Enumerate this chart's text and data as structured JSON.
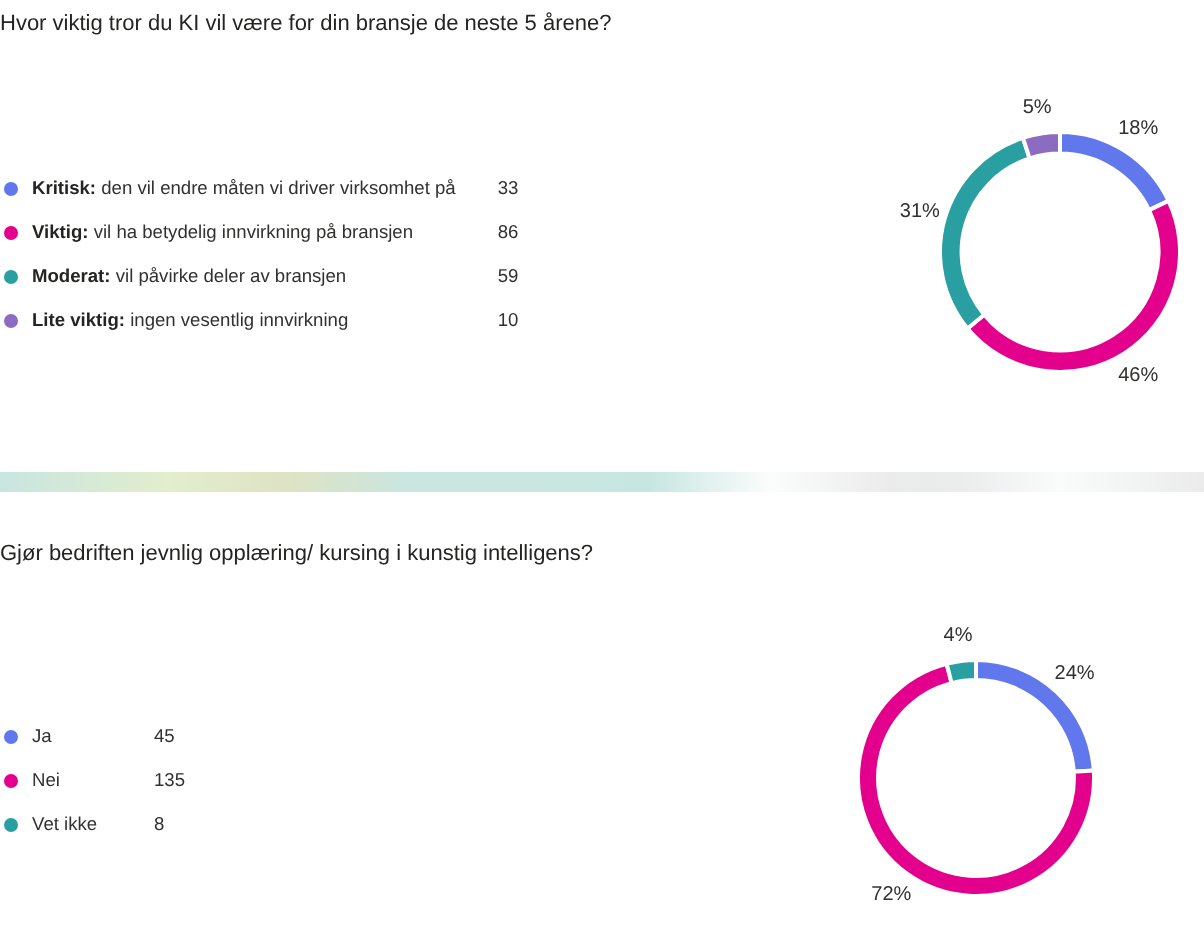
{
  "chart_data": [
    {
      "type": "donut",
      "title": "Hvor viktig tror du KI vil være for din bransje de neste 5 årene?",
      "categories": [
        "Kritisk: den vil endre måten vi driver virksomhet på",
        "Viktig: vil ha betydelig innvirkning på bransjen",
        "Moderat: vil påvirke deler av bransjen",
        "Lite viktig: ingen vesentlig innvirkning"
      ],
      "values": [
        18,
        46,
        31,
        5
      ],
      "value_labels": [
        "18%",
        "46%",
        "31%",
        "5%"
      ],
      "annotations": [
        "33",
        "86",
        "59",
        "10"
      ],
      "colors": [
        "#6078ec",
        "#e3008c",
        "#2a9fa1",
        "#8c6cc1"
      ],
      "legend": "left"
    },
    {
      "type": "donut",
      "title": "Gjør bedriften jevnlig opplæring/ kursing i kunstig intelligens?",
      "categories": [
        "Ja",
        "Nei",
        "Vet ikke"
      ],
      "values": [
        24,
        72,
        4
      ],
      "value_labels": [
        "24%",
        "72%",
        "4%"
      ],
      "annotations": [
        "45",
        "135",
        "8"
      ],
      "colors": [
        "#6078ec",
        "#e3008c",
        "#2a9fa1"
      ],
      "legend": "left"
    }
  ]
}
